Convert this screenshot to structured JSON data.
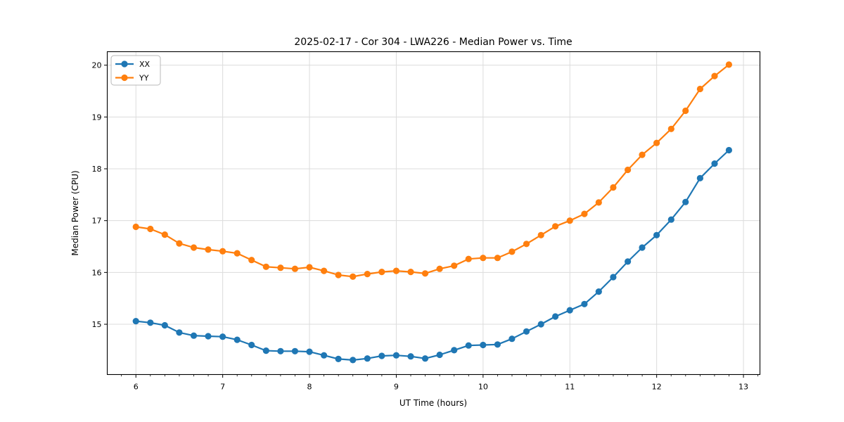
{
  "chart_data": {
    "type": "line",
    "title": "2025-02-17 - Cor 304 - LWA226 - Median Power vs. Time",
    "xlabel": "UT Time (hours)",
    "ylabel": "Median Power (CPU)",
    "xlim": [
      5.67,
      13.19
    ],
    "ylim": [
      14.03,
      20.26
    ],
    "x_ticks": [
      6,
      7,
      8,
      9,
      10,
      11,
      12,
      13
    ],
    "y_ticks": [
      15,
      16,
      17,
      18,
      19,
      20
    ],
    "x_minor_step_hours": 0.1667,
    "grid": true,
    "grid_color": "#dcdcdc",
    "legend_position": "upper left",
    "legend_entries": [
      "XX",
      "YY"
    ],
    "marker": "circle",
    "x": [
      6.0,
      6.167,
      6.333,
      6.5,
      6.667,
      6.833,
      7.0,
      7.167,
      7.333,
      7.5,
      7.667,
      7.833,
      8.0,
      8.167,
      8.333,
      8.5,
      8.667,
      8.833,
      9.0,
      9.167,
      9.333,
      9.5,
      9.667,
      9.833,
      10.0,
      10.167,
      10.333,
      10.5,
      10.667,
      10.833,
      11.0,
      11.167,
      11.333,
      11.5,
      11.667,
      11.833,
      12.0,
      12.167,
      12.333,
      12.5,
      12.667,
      12.833
    ],
    "series": [
      {
        "name": "XX",
        "color": "#1f77b4",
        "values": [
          15.06,
          15.03,
          14.98,
          14.84,
          14.78,
          14.77,
          14.76,
          14.7,
          14.6,
          14.49,
          14.48,
          14.48,
          14.47,
          14.4,
          14.33,
          14.31,
          14.34,
          14.39,
          14.4,
          14.38,
          14.34,
          14.41,
          14.5,
          14.59,
          14.6,
          14.61,
          14.72,
          14.86,
          15.0,
          15.15,
          15.27,
          15.39,
          15.63,
          15.91,
          16.21,
          16.48,
          16.72,
          17.02,
          17.36,
          17.82,
          18.1,
          18.36
        ]
      },
      {
        "name": "YY",
        "color": "#ff7f0e",
        "values": [
          16.88,
          16.84,
          16.73,
          16.56,
          16.48,
          16.44,
          16.41,
          16.37,
          16.24,
          16.11,
          16.09,
          16.07,
          16.1,
          16.03,
          15.95,
          15.92,
          15.97,
          16.01,
          16.03,
          16.01,
          15.98,
          16.07,
          16.13,
          16.26,
          16.28,
          16.28,
          16.4,
          16.55,
          16.72,
          16.89,
          17.0,
          17.13,
          17.35,
          17.64,
          17.98,
          18.27,
          18.5,
          18.77,
          19.12,
          19.54,
          19.79,
          20.01
        ]
      }
    ]
  }
}
